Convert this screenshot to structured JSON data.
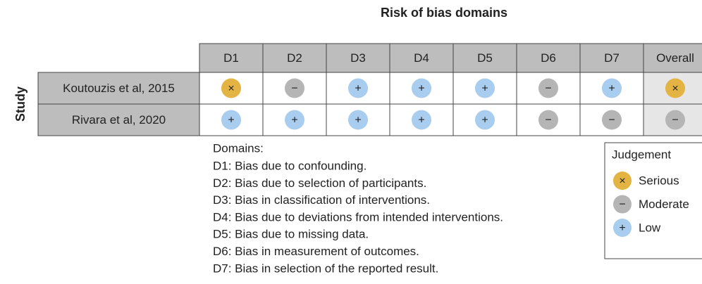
{
  "title": "Risk of bias domains",
  "row_axis_label": "Study",
  "columns": [
    "D1",
    "D2",
    "D3",
    "D4",
    "D5",
    "D6",
    "D7",
    "Overall"
  ],
  "rows": [
    {
      "study": "Koutouzis et al, 2015",
      "cells": [
        "×",
        "−",
        "+",
        "+",
        "+",
        "−",
        "+",
        "×"
      ]
    },
    {
      "study": "Rivara et al, 2020",
      "cells": [
        "+",
        "+",
        "+",
        "+",
        "+",
        "−",
        "−",
        "−"
      ]
    }
  ],
  "domains_heading": "Domains:",
  "domains": [
    "D1: Bias due to confounding.",
    "D2: Bias due to selection of participants.",
    "D3: Bias in classification of interventions.",
    "D4: Bias due to deviations from intended interventions.",
    "D5: Bias due to missing data.",
    "D6: Bias in measurement of outcomes.",
    "D7: Bias in selection of the reported result."
  ],
  "legend": {
    "title": "Judgement",
    "items": [
      {
        "symbol": "×",
        "label": "Serious",
        "color": "#e3b443"
      },
      {
        "symbol": "−",
        "label": "Moderate",
        "color": "#b5b5b5"
      },
      {
        "symbol": "+",
        "label": "Low",
        "color": "#a9cdee"
      }
    ]
  }
}
